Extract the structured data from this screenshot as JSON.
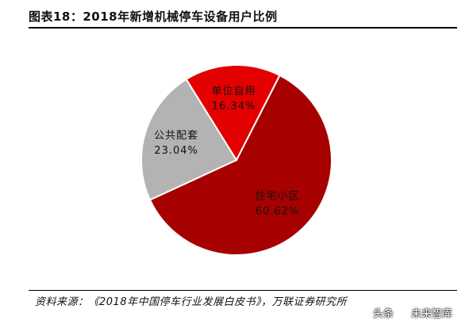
{
  "header": {
    "title": "图表18：2018年新增机械停车设备用户比例"
  },
  "chart_data": {
    "type": "pie",
    "slices": [
      {
        "label": "住宅小区",
        "value": 60.62,
        "value_label": "60.62%",
        "color": "#a60000"
      },
      {
        "label": "公共配套",
        "value": 23.04,
        "value_label": "23.04%",
        "color": "#b3b3b3"
      },
      {
        "label": "单位自用",
        "value": 16.34,
        "value_label": "16.34%",
        "color": "#e30000"
      }
    ],
    "legend": "none"
  },
  "footer": {
    "source": "资料来源：《2018年中国停车行业发展白皮书》，万联证券研究所"
  },
  "watermark": {
    "prefix": "头条",
    "text": "未来智库"
  }
}
